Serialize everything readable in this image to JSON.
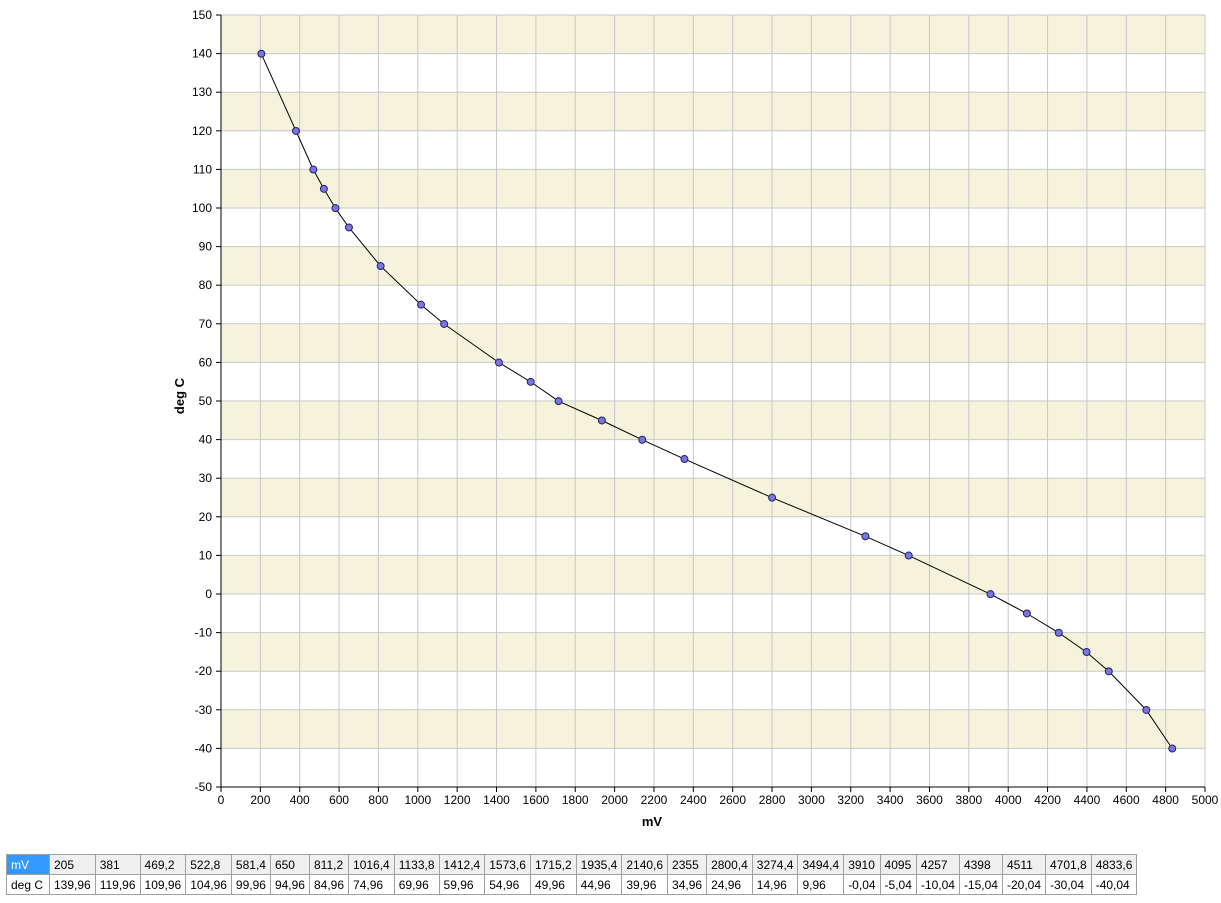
{
  "chart_data": {
    "type": "line",
    "xlabel": "mV",
    "ylabel": "deg C",
    "xlim": [
      0,
      5000
    ],
    "ylim": [
      -50,
      150
    ],
    "x_ticks": [
      0,
      200,
      400,
      600,
      800,
      1000,
      1200,
      1400,
      1600,
      1800,
      2000,
      2200,
      2400,
      2600,
      2800,
      3000,
      3200,
      3400,
      3600,
      3800,
      4000,
      4200,
      4400,
      4600,
      4800,
      5000
    ],
    "y_ticks": [
      -50,
      -40,
      -30,
      -20,
      -10,
      0,
      10,
      20,
      30,
      40,
      50,
      60,
      70,
      80,
      90,
      100,
      110,
      120,
      130,
      140,
      150
    ],
    "grid": true,
    "alternating_bands": true,
    "colors": {
      "line": "#000000",
      "marker_fill": "#7777dd",
      "marker_stroke": "#22226a",
      "band": "#f5f3dc",
      "grid": "#c8c8c8"
    },
    "series": [
      {
        "x": [
          205,
          381,
          469.2,
          522.8,
          581.4,
          650,
          811.2,
          1016.4,
          1133.8,
          1412.4,
          1573.6,
          1715.2,
          1935.4,
          2140.6,
          2355,
          2800.4,
          3274.4,
          3494.4,
          3910,
          4095,
          4257,
          4398,
          4511,
          4701.8,
          4833.6
        ],
        "y": [
          139.96,
          119.96,
          109.96,
          104.96,
          99.96,
          94.96,
          84.96,
          74.96,
          69.96,
          59.96,
          54.96,
          49.96,
          44.96,
          39.96,
          34.96,
          24.96,
          14.96,
          9.96,
          -0.04,
          -5.04,
          -10.04,
          -15.04,
          -20.04,
          -30.04,
          -40.04
        ]
      }
    ]
  },
  "table": {
    "x_header": "mV",
    "y_header": "deg C",
    "x_values": [
      "205",
      "381",
      "469,2",
      "522,8",
      "581,4",
      "650",
      "811,2",
      "1016,4",
      "1133,8",
      "1412,4",
      "1573,6",
      "1715,2",
      "1935,4",
      "2140,6",
      "2355",
      "2800,4",
      "3274,4",
      "3494,4",
      "3910",
      "4095",
      "4257",
      "4398",
      "4511",
      "4701,8",
      "4833,6"
    ],
    "y_values": [
      "139,96",
      "119,96",
      "109,96",
      "104,96",
      "99,96",
      "94,96",
      "84,96",
      "74,96",
      "69,96",
      "59,96",
      "54,96",
      "49,96",
      "44,96",
      "39,96",
      "34,96",
      "24,96",
      "14,96",
      "9,96",
      "-0,04",
      "-5,04",
      "-10,04",
      "-15,04",
      "-20,04",
      "-30,04",
      "-40,04"
    ]
  }
}
